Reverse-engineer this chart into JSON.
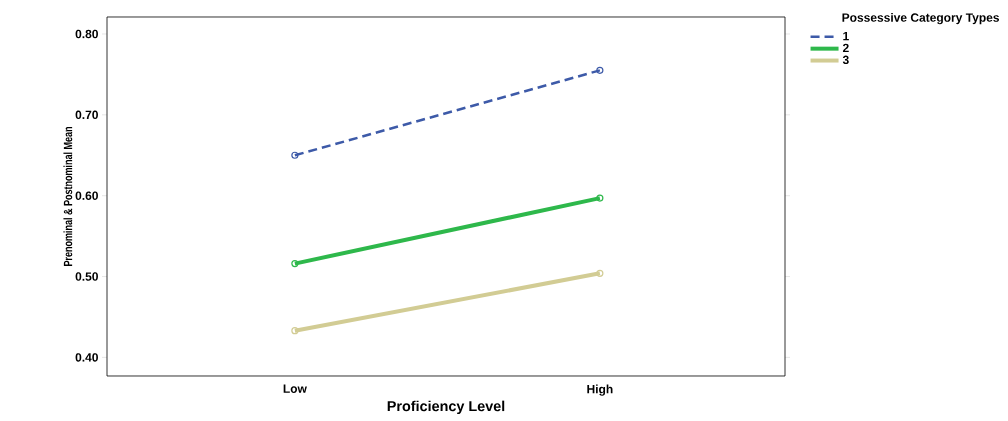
{
  "chart_data": {
    "type": "line",
    "xlabel": "Proficiency Level",
    "ylabel": "Prenominal & Postnominal Mean",
    "legend_title": "Possessive Category Types",
    "categories": [
      "Low",
      "High"
    ],
    "series": [
      {
        "name": "1",
        "color": "#3d5aa8",
        "values": [
          0.65,
          0.755
        ],
        "line_style": "dashed"
      },
      {
        "name": "2",
        "color": "#2eb84b",
        "values": [
          0.516,
          0.597
        ],
        "line_style": "solid"
      },
      {
        "name": "3",
        "color": "#d2cc94",
        "values": [
          0.433,
          0.504
        ],
        "line_style": "solid"
      }
    ],
    "ylim": [
      0.377,
      0.821
    ],
    "yticks": [
      {
        "value": 0.4,
        "label": "0.40"
      },
      {
        "value": 0.5,
        "label": "0.50"
      },
      {
        "value": 0.6,
        "label": "0.60"
      },
      {
        "value": 0.7,
        "label": "0.70"
      },
      {
        "value": 0.8,
        "label": "0.80"
      }
    ],
    "grid": false,
    "legend": "top right",
    "marker": "circle"
  }
}
